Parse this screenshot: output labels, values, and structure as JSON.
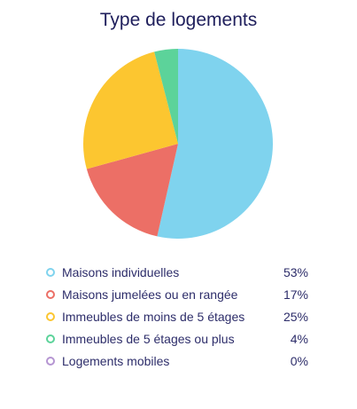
{
  "chart_data": {
    "type": "pie",
    "title": "Type de logements",
    "slices": [
      {
        "label": "Maisons individuelles",
        "value": 53,
        "display": "53%",
        "color": "#7fd3ee"
      },
      {
        "label": "Maisons jumelées ou en rangée",
        "value": 17,
        "display": "17%",
        "color": "#ec6f66"
      },
      {
        "label": "Immeubles de moins de 5 étages",
        "value": 25,
        "display": "25%",
        "color": "#fcc630"
      },
      {
        "label": "Immeubles de 5 étages ou plus",
        "value": 4,
        "display": "4%",
        "color": "#5cd39a"
      },
      {
        "label": "Logements mobiles",
        "value": 0,
        "display": "0%",
        "color": "#b595d2"
      }
    ],
    "legend_position": "bottom"
  }
}
